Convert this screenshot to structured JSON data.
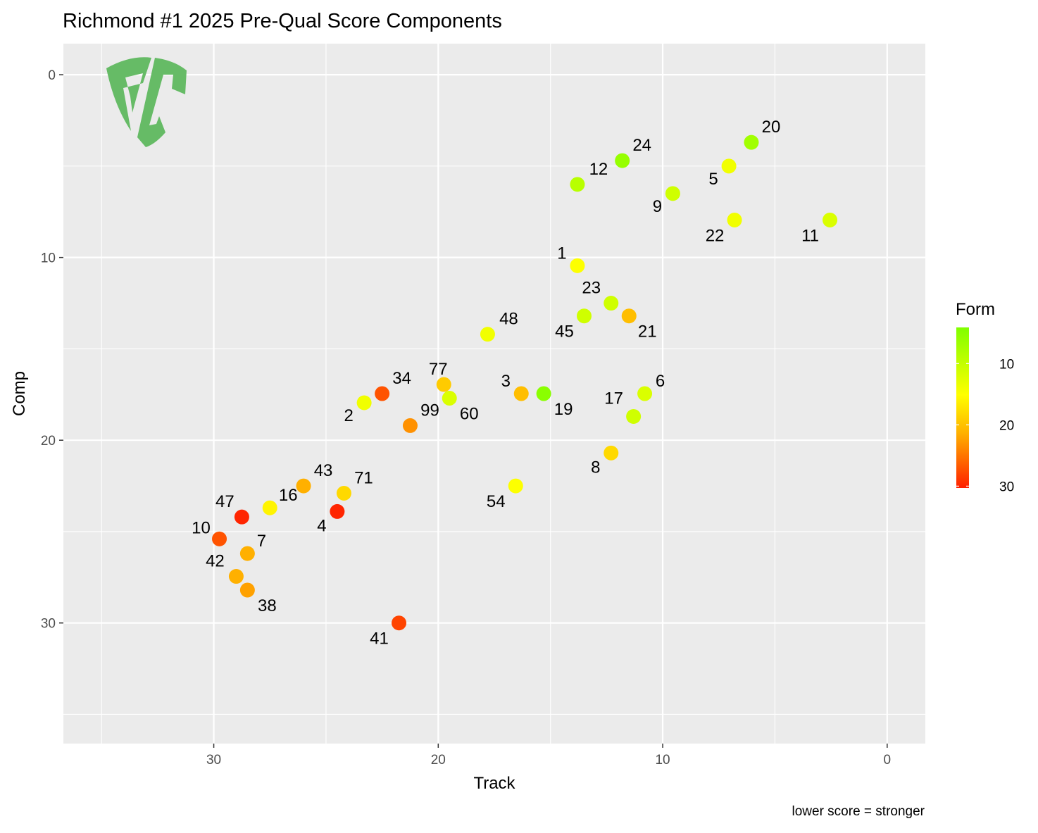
{
  "chart_data": {
    "type": "scatter",
    "title": "Richmond #1 2025 Pre-Qual Score Components",
    "xlabel": "Track",
    "ylabel": "Comp",
    "caption": "lower score = stronger",
    "xlim": [
      36.7,
      -1.7
    ],
    "ylim": [
      -1.7,
      36.6
    ],
    "x_reversed": true,
    "y_reversed": true,
    "x_ticks": [
      30,
      20,
      10,
      0
    ],
    "y_ticks": [
      0,
      10,
      20,
      30
    ],
    "grid": true,
    "legend": {
      "title": "Form",
      "placement": "right",
      "ticks": [
        10,
        20,
        30
      ],
      "range": [
        4.1,
        30.3
      ],
      "colors": [
        "#80ff00",
        "#ffff00",
        "#ffa500",
        "#ff2000"
      ]
    },
    "points": [
      {
        "label": "20",
        "track": 6.05,
        "comp": 3.7,
        "form": 7
      },
      {
        "label": "24",
        "track": 11.8,
        "comp": 4.7,
        "form": 6
      },
      {
        "label": "5",
        "track": 7.05,
        "comp": 5.0,
        "form": 14
      },
      {
        "label": "12",
        "track": 13.8,
        "comp": 6.0,
        "form": 9
      },
      {
        "label": "9",
        "track": 9.55,
        "comp": 6.5,
        "form": 11
      },
      {
        "label": "22",
        "track": 6.8,
        "comp": 7.95,
        "form": 14
      },
      {
        "label": "11",
        "track": 2.55,
        "comp": 7.95,
        "form": 12
      },
      {
        "label": "1",
        "track": 13.8,
        "comp": 10.45,
        "form": 15
      },
      {
        "label": "23",
        "track": 12.3,
        "comp": 12.5,
        "form": 11
      },
      {
        "label": "45",
        "track": 13.5,
        "comp": 13.2,
        "form": 11
      },
      {
        "label": "21",
        "track": 11.5,
        "comp": 13.2,
        "form": 20
      },
      {
        "label": "48",
        "track": 17.8,
        "comp": 14.2,
        "form": 14
      },
      {
        "label": "77",
        "track": 19.75,
        "comp": 16.95,
        "form": 19
      },
      {
        "label": "34",
        "track": 22.5,
        "comp": 17.45,
        "form": 27
      },
      {
        "label": "60",
        "track": 19.5,
        "comp": 17.7,
        "form": 12
      },
      {
        "label": "3",
        "track": 16.3,
        "comp": 17.45,
        "form": 20
      },
      {
        "label": "19",
        "track": 15.3,
        "comp": 17.45,
        "form": 5
      },
      {
        "label": "6",
        "track": 10.8,
        "comp": 17.45,
        "form": 12
      },
      {
        "label": "2",
        "track": 23.3,
        "comp": 17.95,
        "form": 14
      },
      {
        "label": "17",
        "track": 11.3,
        "comp": 18.7,
        "form": 11
      },
      {
        "label": "99",
        "track": 21.25,
        "comp": 19.2,
        "form": 23
      },
      {
        "label": "8",
        "track": 12.3,
        "comp": 20.7,
        "form": 18
      },
      {
        "label": "43",
        "track": 26.0,
        "comp": 22.5,
        "form": 21
      },
      {
        "label": "54",
        "track": 16.55,
        "comp": 22.5,
        "form": 15
      },
      {
        "label": "71",
        "track": 24.2,
        "comp": 22.9,
        "form": 18
      },
      {
        "label": "16",
        "track": 27.5,
        "comp": 23.7,
        "form": 16
      },
      {
        "label": "4",
        "track": 24.5,
        "comp": 23.9,
        "form": 30
      },
      {
        "label": "47",
        "track": 28.75,
        "comp": 24.2,
        "form": 30
      },
      {
        "label": "10",
        "track": 29.75,
        "comp": 25.4,
        "form": 27
      },
      {
        "label": "7",
        "track": 28.5,
        "comp": 26.2,
        "form": 21
      },
      {
        "label": "42",
        "track": 29.0,
        "comp": 27.45,
        "form": 21
      },
      {
        "label": "38",
        "track": 28.5,
        "comp": 28.2,
        "form": 22
      },
      {
        "label": "41",
        "track": 21.75,
        "comp": 30.0,
        "form": 28
      }
    ]
  }
}
